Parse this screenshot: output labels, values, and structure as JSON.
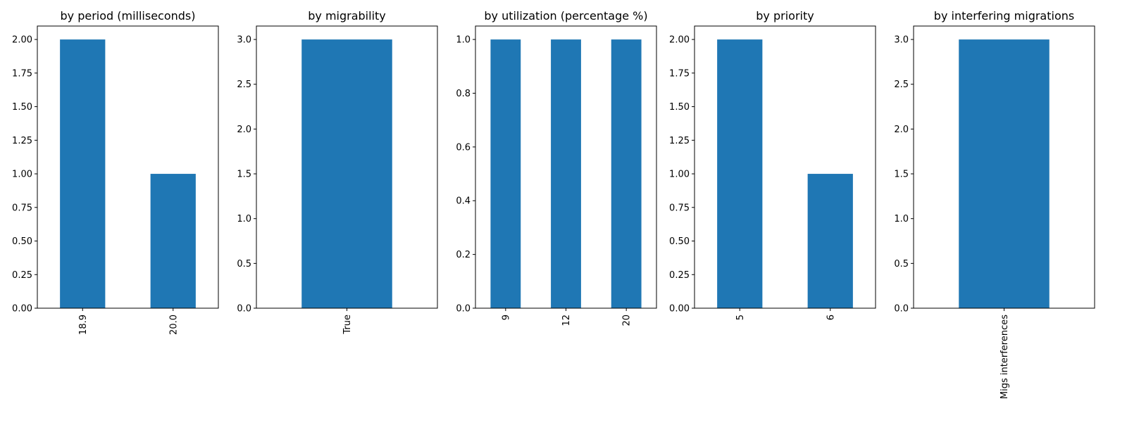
{
  "colors": {
    "bar": "#1f77b4",
    "axis": "#000000",
    "background": "#ffffff"
  },
  "chart_data": [
    {
      "type": "bar",
      "title": "by period (milliseconds)",
      "categories": [
        "18.9",
        "20.0"
      ],
      "values": [
        2,
        1
      ],
      "ylim": [
        0,
        2.1
      ],
      "yticks": [
        "0.00",
        "0.25",
        "0.50",
        "0.75",
        "1.00",
        "1.25",
        "1.50",
        "1.75",
        "2.00"
      ],
      "xlabel": "",
      "ylabel": "",
      "grid": false
    },
    {
      "type": "bar",
      "title": "by migrability",
      "categories": [
        "True"
      ],
      "values": [
        3
      ],
      "ylim": [
        0,
        3.15
      ],
      "yticks": [
        "0.0",
        "0.5",
        "1.0",
        "1.5",
        "2.0",
        "2.5",
        "3.0"
      ],
      "xlabel": "",
      "ylabel": "",
      "grid": false
    },
    {
      "type": "bar",
      "title": "by utilization (percentage %)",
      "categories": [
        "9",
        "12",
        "20"
      ],
      "values": [
        1,
        1,
        1
      ],
      "ylim": [
        0,
        1.05
      ],
      "yticks": [
        "0.0",
        "0.2",
        "0.4",
        "0.6",
        "0.8",
        "1.0"
      ],
      "xlabel": "",
      "ylabel": "",
      "grid": false
    },
    {
      "type": "bar",
      "title": "by priority",
      "categories": [
        "5",
        "6"
      ],
      "values": [
        2,
        1
      ],
      "ylim": [
        0,
        2.1
      ],
      "yticks": [
        "0.00",
        "0.25",
        "0.50",
        "0.75",
        "1.00",
        "1.25",
        "1.50",
        "1.75",
        "2.00"
      ],
      "xlabel": "",
      "ylabel": "",
      "grid": false
    },
    {
      "type": "bar",
      "title": "by interfering migrations",
      "categories": [
        "Migs interferences"
      ],
      "values": [
        3
      ],
      "ylim": [
        0,
        3.15
      ],
      "yticks": [
        "0.0",
        "0.5",
        "1.0",
        "1.5",
        "2.0",
        "2.5",
        "3.0"
      ],
      "xlabel": "",
      "ylabel": "",
      "grid": false
    }
  ]
}
